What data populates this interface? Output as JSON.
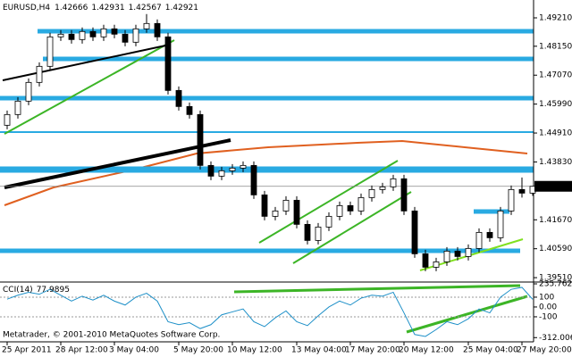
{
  "chart_data": [
    {
      "type": "candlestick",
      "title": "EURUSD,H4",
      "footer": "Metatrader, © 2001-2010 MetaQuotes Software Corp.",
      "categories": [
        "25 Apr 2011",
        null,
        null,
        null,
        null,
        "28 Apr 12:00",
        null,
        null,
        null,
        null,
        "3 May 04:00",
        null,
        null,
        null,
        null,
        null,
        "5 May 20:00",
        null,
        null,
        null,
        null,
        "10 May 12:00",
        null,
        null,
        null,
        null,
        null,
        "13 May 04:00",
        null,
        null,
        null,
        null,
        "17 May 20:00",
        null,
        null,
        null,
        null,
        "20 May 12:00",
        null,
        null,
        null,
        null,
        null,
        "25 May 04:00",
        null,
        null,
        null,
        null,
        "27 May 20:00",
        null
      ],
      "open": [
        1.452,
        1.456,
        1.461,
        1.468,
        1.474,
        1.485,
        1.486,
        1.484,
        1.487,
        1.485,
        1.488,
        1.486,
        1.483,
        1.488,
        1.49,
        1.485,
        1.465,
        1.459,
        1.456,
        1.437,
        1.433,
        1.435,
        1.436,
        1.437,
        1.426,
        1.418,
        1.42,
        1.424,
        1.415,
        1.409,
        1.414,
        1.418,
        1.422,
        1.42,
        1.425,
        1.428,
        1.429,
        1.432,
        1.42,
        1.404,
        1.399,
        1.401,
        1.405,
        1.403,
        1.406,
        1.412,
        1.41,
        1.42,
        1.428,
        1.42666
      ],
      "high": [
        1.4575,
        1.4625,
        1.4695,
        1.4755,
        1.4865,
        1.4875,
        1.4875,
        1.4885,
        1.4885,
        1.4895,
        1.4895,
        1.4875,
        1.4895,
        1.4935,
        1.4915,
        1.4865,
        1.4665,
        1.4605,
        1.4575,
        1.4385,
        1.4365,
        1.4375,
        1.4385,
        1.4385,
        1.4275,
        1.4215,
        1.4255,
        1.4255,
        1.4165,
        1.4155,
        1.4195,
        1.4235,
        1.4235,
        1.4265,
        1.4295,
        1.4305,
        1.4335,
        1.4335,
        1.4215,
        1.4055,
        1.4025,
        1.4065,
        1.4065,
        1.4075,
        1.4135,
        1.4135,
        1.4215,
        1.4295,
        1.4325,
        1.42931
      ],
      "low": [
        1.4505,
        1.4545,
        1.4595,
        1.4665,
        1.4725,
        1.4835,
        1.4825,
        1.4825,
        1.4835,
        1.4835,
        1.4845,
        1.4815,
        1.4815,
        1.4865,
        1.4835,
        1.4635,
        1.4575,
        1.4545,
        1.4355,
        1.4315,
        1.4315,
        1.4335,
        1.4345,
        1.4245,
        1.4165,
        1.4165,
        1.4185,
        1.4135,
        1.4075,
        1.4075,
        1.4125,
        1.4165,
        1.4185,
        1.4185,
        1.4235,
        1.4265,
        1.4275,
        1.4185,
        1.4025,
        1.3975,
        1.3975,
        1.3995,
        1.4015,
        1.4015,
        1.4045,
        1.4085,
        1.4085,
        1.4185,
        1.425,
        1.42567
      ],
      "close": [
        1.456,
        1.461,
        1.468,
        1.474,
        1.485,
        1.486,
        1.484,
        1.487,
        1.485,
        1.488,
        1.486,
        1.483,
        1.488,
        1.49,
        1.485,
        1.465,
        1.459,
        1.456,
        1.437,
        1.433,
        1.435,
        1.436,
        1.437,
        1.426,
        1.418,
        1.42,
        1.424,
        1.415,
        1.409,
        1.414,
        1.418,
        1.422,
        1.42,
        1.425,
        1.428,
        1.429,
        1.432,
        1.42,
        1.404,
        1.399,
        1.401,
        1.405,
        1.403,
        1.406,
        1.412,
        1.41,
        1.42,
        1.428,
        1.42666,
        1.42921
      ],
      "up_color": "#ffffff",
      "down_color": "#000000",
      "ylim": [
        1.3938,
        1.4981
      ],
      "yticks": [
        {
          "value": 1.4921,
          "label": "1.49210"
        },
        {
          "value": 1.4815,
          "label": "1.48150"
        },
        {
          "value": 1.4707,
          "label": "1.47070"
        },
        {
          "value": 1.4599,
          "label": "1.45990"
        },
        {
          "value": 1.4491,
          "label": "1.44910"
        },
        {
          "value": 1.4383,
          "label": "1.43830"
        },
        {
          "value": 1.4167,
          "label": "1.41670"
        },
        {
          "value": 1.4059,
          "label": "1.40590"
        },
        {
          "value": 1.3951,
          "label": "1.39510"
        }
      ]
    },
    {
      "type": "line",
      "title": "CCI(14)",
      "color": "#1e90c8",
      "values": [
        80,
        120,
        150,
        130,
        180,
        120,
        60,
        110,
        70,
        120,
        60,
        20,
        100,
        140,
        60,
        -150,
        -180,
        -160,
        -220,
        -180,
        -80,
        -50,
        -20,
        -150,
        -200,
        -110,
        -40,
        -150,
        -190,
        -90,
        0,
        60,
        20,
        90,
        120,
        110,
        150,
        -60,
        -280,
        -300,
        -230,
        -150,
        -180,
        -120,
        -20,
        -60,
        100,
        180,
        200,
        77.9895
      ],
      "ylim": [
        -355,
        236
      ],
      "yticks": [
        235.7626,
        100,
        {
          "value": 0,
          "label": "0.00"
        },
        -100,
        -312.006
      ]
    }
  ]
}
